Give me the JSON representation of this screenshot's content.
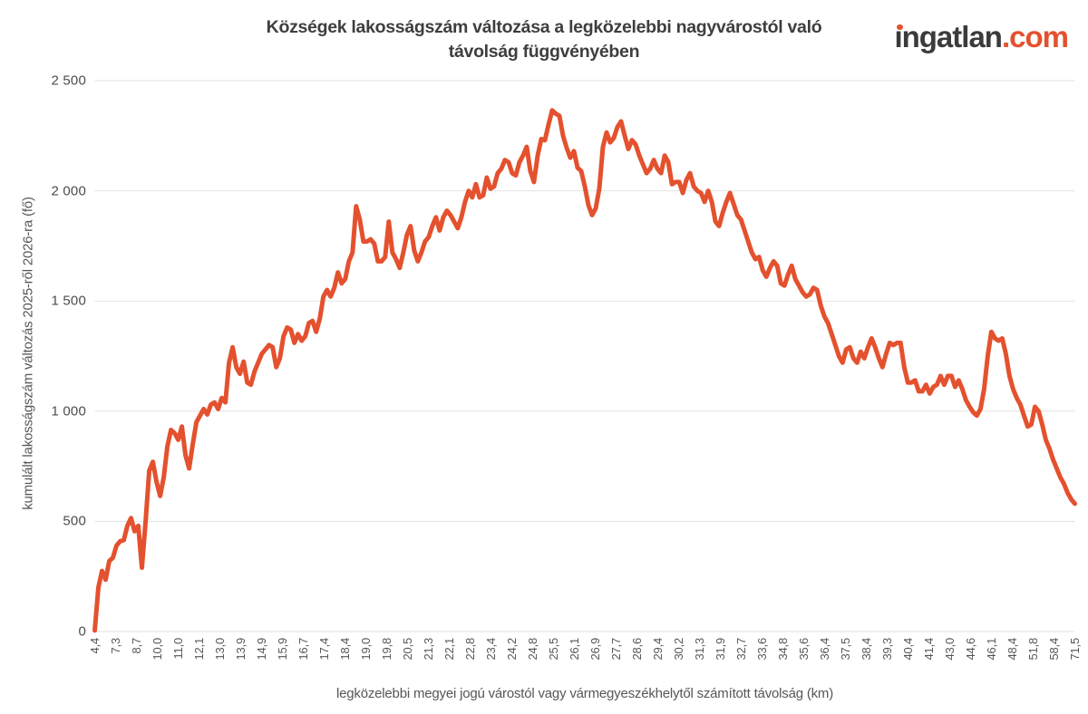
{
  "header": {
    "title_line1": "Községek lakosságszám változása a legközelebbi nagyvárostól való",
    "title_line2": "távolság függvényében",
    "logo": {
      "text_main": "ingatlan",
      "text_suffix": ".com",
      "main_color": "#3b3b3b",
      "accent_color": "#e4512e"
    }
  },
  "chart_data": {
    "type": "line",
    "title": "Községek lakosságszám változása a legközelebbi nagyvárostól való távolság függvényében",
    "xlabel": "legközelebbi megyei jogú várostól vagy vármegyeszékhelytől számított távolság (km)",
    "ylabel": "kumulált lakosságszám változás 2025-ről 2026-ra (fő)",
    "line_color": "#e4512e",
    "grid_color": "#e2e2e2",
    "grid": "horizontal",
    "legend": "none",
    "ylim": [
      0,
      2500
    ],
    "y_ticks": [
      0,
      500,
      1000,
      1500,
      2000,
      2500
    ],
    "y_tick_labels": [
      "0",
      "500",
      "1 000",
      "1 500",
      "2 000",
      "2 500"
    ],
    "x_tick_labels": [
      "4,4",
      "7,3",
      "8,7",
      "10,0",
      "11,0",
      "12,1",
      "13,0",
      "13,9",
      "14,9",
      "15,9",
      "16,7",
      "17,4",
      "18,4",
      "19,0",
      "19,8",
      "20,5",
      "21,3",
      "22,1",
      "22,8",
      "23,4",
      "24,2",
      "24,8",
      "25,5",
      "26,1",
      "26,9",
      "27,7",
      "28,6",
      "29,4",
      "30,2",
      "31,3",
      "31,9",
      "32,7",
      "33,6",
      "34,8",
      "35,6",
      "36,4",
      "37,5",
      "38,4",
      "39,3",
      "40,4",
      "41,4",
      "43,0",
      "44,6",
      "46,1",
      "48,4",
      "51,8",
      "58,4",
      "71,5"
    ],
    "series": [
      {
        "name": "kumulált lakosságszám változás 2025-ről 2026-ra (fő)",
        "values": [
          5,
          200,
          275,
          235,
          320,
          335,
          390,
          410,
          415,
          480,
          515,
          455,
          480,
          290,
          500,
          730,
          770,
          680,
          615,
          700,
          840,
          915,
          900,
          870,
          930,
          800,
          740,
          850,
          950,
          980,
          1010,
          985,
          1030,
          1040,
          1010,
          1060,
          1040,
          1220,
          1290,
          1200,
          1170,
          1225,
          1130,
          1120,
          1180,
          1220,
          1260,
          1280,
          1300,
          1290,
          1200,
          1240,
          1340,
          1380,
          1370,
          1310,
          1350,
          1320,
          1340,
          1400,
          1410,
          1360,
          1420,
          1520,
          1550,
          1520,
          1560,
          1630,
          1580,
          1600,
          1680,
          1720,
          1930,
          1870,
          1770,
          1770,
          1780,
          1760,
          1680,
          1680,
          1700,
          1860,
          1720,
          1690,
          1650,
          1720,
          1800,
          1840,
          1730,
          1680,
          1720,
          1770,
          1790,
          1840,
          1880,
          1820,
          1880,
          1910,
          1890,
          1860,
          1830,
          1880,
          1950,
          2000,
          1970,
          2030,
          1970,
          1980,
          2060,
          2010,
          2020,
          2080,
          2100,
          2140,
          2130,
          2080,
          2070,
          2130,
          2160,
          2200,
          2090,
          2040,
          2160,
          2235,
          2230,
          2300,
          2365,
          2350,
          2340,
          2250,
          2195,
          2150,
          2180,
          2105,
          2090,
          2020,
          1935,
          1890,
          1920,
          2010,
          2200,
          2265,
          2220,
          2240,
          2290,
          2315,
          2250,
          2190,
          2230,
          2210,
          2160,
          2120,
          2080,
          2100,
          2140,
          2100,
          2080,
          2160,
          2130,
          2030,
          2040,
          2040,
          1990,
          2050,
          2080,
          2020,
          2000,
          1990,
          1950,
          2000,
          1950,
          1860,
          1840,
          1900,
          1950,
          1990,
          1940,
          1890,
          1870,
          1820,
          1770,
          1720,
          1690,
          1700,
          1640,
          1610,
          1650,
          1680,
          1660,
          1580,
          1570,
          1620,
          1660,
          1600,
          1570,
          1540,
          1520,
          1530,
          1560,
          1550,
          1480,
          1430,
          1400,
          1350,
          1300,
          1250,
          1220,
          1280,
          1290,
          1240,
          1220,
          1270,
          1240,
          1290,
          1330,
          1290,
          1240,
          1200,
          1260,
          1310,
          1300,
          1310,
          1310,
          1200,
          1130,
          1130,
          1140,
          1090,
          1090,
          1120,
          1080,
          1110,
          1120,
          1160,
          1120,
          1160,
          1160,
          1110,
          1140,
          1100,
          1050,
          1020,
          995,
          980,
          1010,
          1100,
          1250,
          1360,
          1330,
          1320,
          1330,
          1260,
          1160,
          1100,
          1060,
          1030,
          980,
          930,
          940,
          1020,
          1000,
          940,
          870,
          830,
          780,
          740,
          700,
          670,
          630,
          600,
          580
        ]
      }
    ]
  }
}
